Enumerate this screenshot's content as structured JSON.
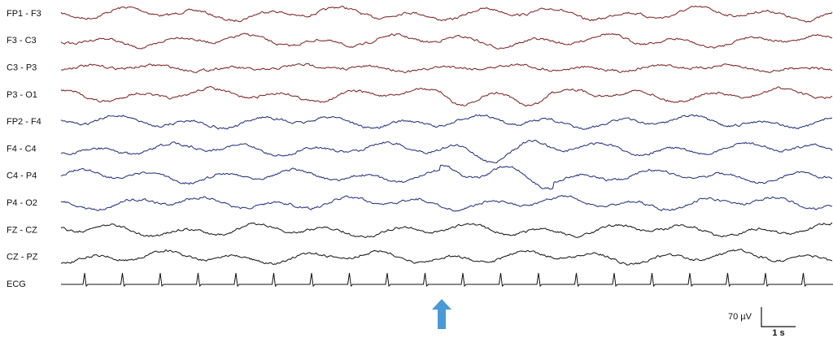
{
  "channels": [
    {
      "label": "FP1 - F3",
      "color": "#7a1c1c"
    },
    {
      "label": "F3 - C3",
      "color": "#7a1c1c"
    },
    {
      "label": "C3 - P3",
      "color": "#7a1c1c"
    },
    {
      "label": "P3 - O1",
      "color": "#7a1c1c"
    },
    {
      "label": "FP2 - F4",
      "color": "#1c2a78"
    },
    {
      "label": "F4 - C4",
      "color": "#1c2a78"
    },
    {
      "label": "C4 - P4",
      "color": "#1c2a78"
    },
    {
      "label": "P4 - O2",
      "color": "#1c2a78"
    },
    {
      "label": "FZ - CZ",
      "color": "#111111"
    },
    {
      "label": "CZ - PZ",
      "color": "#111111"
    },
    {
      "label": "ECG",
      "color": "#111111"
    }
  ],
  "scale": {
    "amplitude": "70 µV",
    "time": "1 s"
  },
  "marker_color": "#4a9ad8"
}
